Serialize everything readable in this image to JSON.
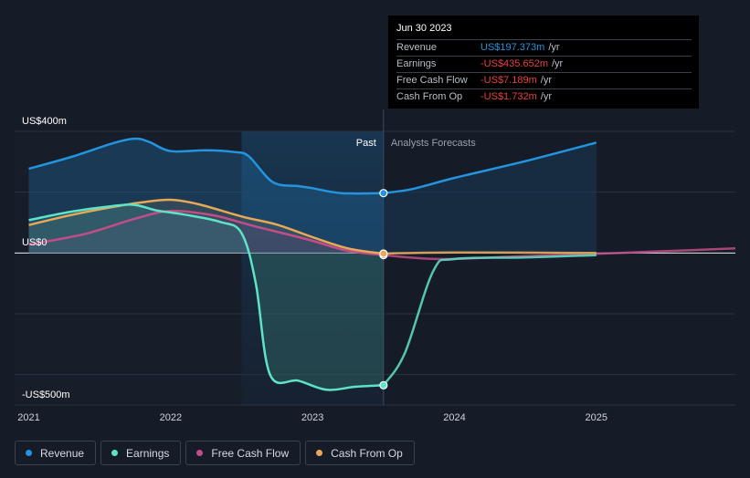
{
  "chart_data": {
    "type": "line",
    "x_range": [
      2020.9,
      2025.98
    ],
    "y_range": [
      -500,
      400
    ],
    "y_ticks": [
      -400,
      -200,
      0,
      200,
      400
    ],
    "y_labels": [
      {
        "value": 400,
        "label": "US$400m"
      },
      {
        "value": 0,
        "label": "US$0"
      },
      {
        "value": -500,
        "label": "-US$500m"
      }
    ],
    "x_ticks": [
      {
        "value": 2021,
        "label": "2021"
      },
      {
        "value": 2022,
        "label": "2022"
      },
      {
        "value": 2023,
        "label": "2023"
      },
      {
        "value": 2024,
        "label": "2024"
      },
      {
        "value": 2025,
        "label": "2025"
      }
    ],
    "divider_x": 2023.5,
    "shade_start_x": 2022.5,
    "forecast_end_x": 2025,
    "past_label": "Past",
    "forecast_label": "Analysts Forecasts",
    "series": [
      {
        "name": "Revenue",
        "color": "#2394df",
        "fill": "#1f6fa8",
        "past": [
          [
            2021.0,
            277
          ],
          [
            2021.3,
            316
          ],
          [
            2021.6,
            362
          ],
          [
            2021.75,
            376
          ],
          [
            2021.85,
            365
          ],
          [
            2022.0,
            335
          ],
          [
            2022.25,
            338
          ],
          [
            2022.45,
            332
          ],
          [
            2022.55,
            318
          ],
          [
            2022.72,
            233
          ],
          [
            2022.9,
            220
          ],
          [
            2023.0,
            213
          ],
          [
            2023.2,
            197
          ],
          [
            2023.5,
            197
          ]
        ],
        "forecast": [
          [
            2023.5,
            197
          ],
          [
            2023.7,
            210
          ],
          [
            2024.0,
            247
          ],
          [
            2024.5,
            302
          ],
          [
            2025.0,
            363
          ]
        ]
      },
      {
        "name": "Earnings",
        "color": "#5de4c7",
        "fill": "#3f8f80",
        "past": [
          [
            2021.0,
            108
          ],
          [
            2021.3,
            136
          ],
          [
            2021.6,
            155
          ],
          [
            2021.75,
            158
          ],
          [
            2021.9,
            140
          ],
          [
            2022.1,
            126
          ],
          [
            2022.35,
            102
          ],
          [
            2022.5,
            65
          ],
          [
            2022.6,
            -100
          ],
          [
            2022.7,
            -400
          ],
          [
            2022.9,
            -420
          ],
          [
            2023.1,
            -450
          ],
          [
            2023.3,
            -440
          ],
          [
            2023.5,
            -435
          ]
        ],
        "forecast": [
          [
            2023.5,
            -435
          ],
          [
            2023.65,
            -330
          ],
          [
            2023.85,
            -60
          ],
          [
            2024.0,
            -20
          ],
          [
            2024.5,
            -15
          ],
          [
            2025.0,
            -7
          ]
        ]
      },
      {
        "name": "Free Cash Flow",
        "color": "#c24d88",
        "fill": "#7a2a58",
        "past": [
          [
            2021.0,
            28
          ],
          [
            2021.4,
            63
          ],
          [
            2021.75,
            113
          ],
          [
            2022.0,
            138
          ],
          [
            2022.3,
            124
          ],
          [
            2022.55,
            93
          ],
          [
            2022.8,
            64
          ],
          [
            2023.0,
            40
          ],
          [
            2023.25,
            7
          ],
          [
            2023.5,
            -7
          ]
        ],
        "forecast": [
          [
            2023.5,
            -7
          ],
          [
            2023.9,
            -20
          ],
          [
            2024.5,
            -10
          ],
          [
            2025.0,
            -3
          ],
          [
            2025.98,
            15
          ]
        ]
      },
      {
        "name": "Cash From Op",
        "color": "#e8a857",
        "fill": "#8a6a35",
        "past": [
          [
            2021.0,
            92
          ],
          [
            2021.3,
            125
          ],
          [
            2021.6,
            152
          ],
          [
            2021.8,
            167
          ],
          [
            2022.0,
            175
          ],
          [
            2022.2,
            160
          ],
          [
            2022.5,
            120
          ],
          [
            2022.75,
            93
          ],
          [
            2023.0,
            52
          ],
          [
            2023.25,
            15
          ],
          [
            2023.5,
            -2
          ]
        ],
        "forecast": [
          [
            2023.5,
            -2
          ],
          [
            2024.0,
            2
          ],
          [
            2025.0,
            0
          ]
        ]
      }
    ],
    "highlight_x": 2023.5
  },
  "tooltip": {
    "date": "Jun 30 2023",
    "rows": [
      {
        "label": "Revenue",
        "value": "US$197.373m",
        "unit": "/yr",
        "color": "#2394df"
      },
      {
        "label": "Earnings",
        "value": "-US$435.652m",
        "unit": "/yr",
        "color": "#e8413e"
      },
      {
        "label": "Free Cash Flow",
        "value": "-US$7.189m",
        "unit": "/yr",
        "color": "#e8413e"
      },
      {
        "label": "Cash From Op",
        "value": "-US$1.732m",
        "unit": "/yr",
        "color": "#e8413e"
      }
    ]
  },
  "legend": [
    {
      "label": "Revenue",
      "color": "#2394df"
    },
    {
      "label": "Earnings",
      "color": "#5de4c7"
    },
    {
      "label": "Free Cash Flow",
      "color": "#c24d88"
    },
    {
      "label": "Cash From Op",
      "color": "#e8a857"
    }
  ]
}
